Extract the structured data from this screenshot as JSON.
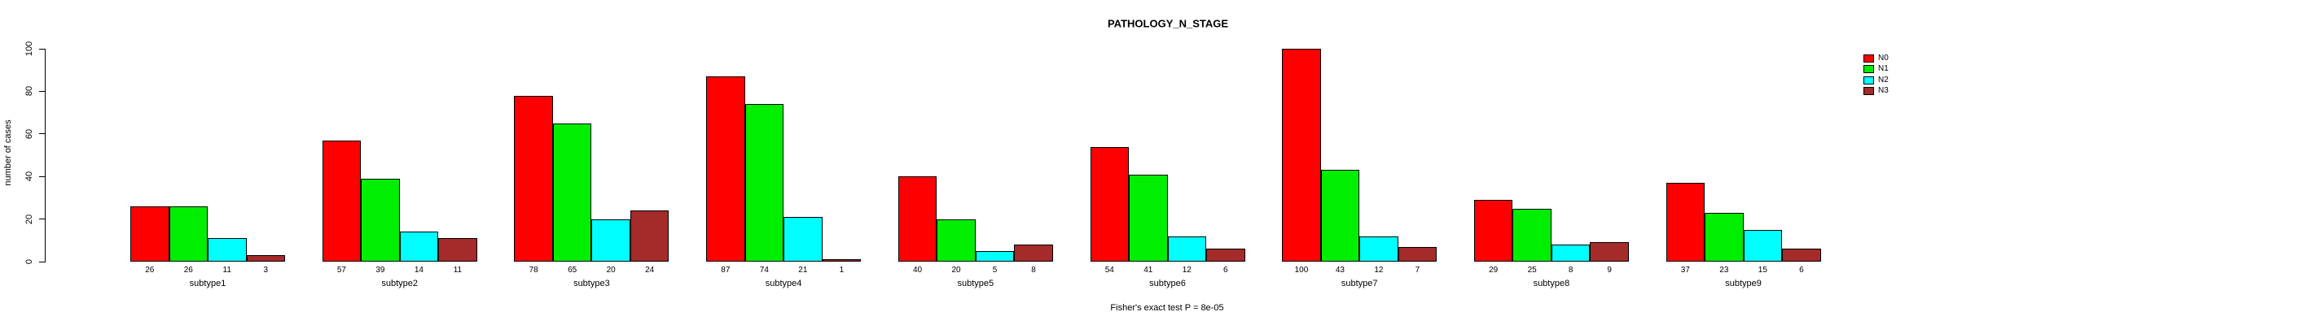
{
  "chart_data": {
    "type": "bar",
    "title": "PATHOLOGY_N_STAGE",
    "ylabel": "number of cases",
    "xlabel": "",
    "footnote": "Fisher's exact test P = 8e-05",
    "categories": [
      "subtype1",
      "subtype2",
      "subtype3",
      "subtype4",
      "subtype5",
      "subtype6",
      "subtype7",
      "subtype8",
      "subtype9"
    ],
    "series": [
      {
        "name": "N0",
        "color": "#FF0000",
        "values": [
          26,
          57,
          78,
          87,
          40,
          54,
          100,
          29,
          37
        ]
      },
      {
        "name": "N1",
        "color": "#00EE00",
        "values": [
          26,
          39,
          65,
          74,
          20,
          41,
          43,
          25,
          23
        ]
      },
      {
        "name": "N2",
        "color": "#00FFFF",
        "values": [
          11,
          14,
          20,
          21,
          5,
          12,
          12,
          8,
          15
        ]
      },
      {
        "name": "N3",
        "color": "#A52A2A",
        "values": [
          3,
          11,
          24,
          1,
          8,
          6,
          7,
          9,
          6
        ]
      }
    ],
    "yticks": [
      0,
      20,
      40,
      60,
      80,
      100
    ],
    "ylim": [
      0,
      100
    ],
    "grid": false,
    "legend_position": "right",
    "bar_value_labels_shown": true
  }
}
